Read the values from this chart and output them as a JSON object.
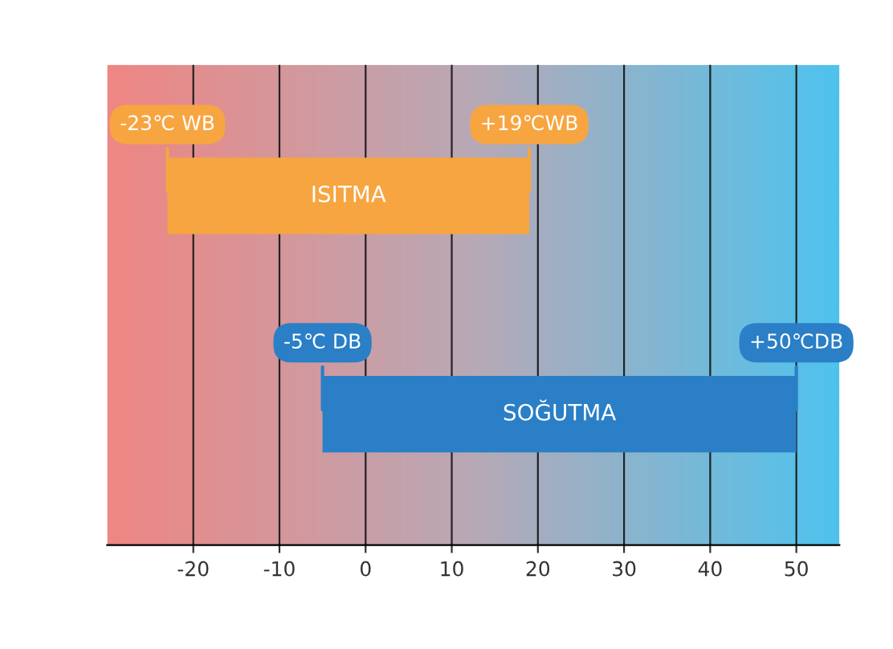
{
  "chart_data": {
    "type": "bar",
    "orientation": "horizontal",
    "categories": [
      "ISITMA",
      "SOĞUTMA"
    ],
    "base": [
      -23,
      -5
    ],
    "values": [
      42,
      55
    ],
    "colors": [
      "#f7a541",
      "#2a7fc6"
    ],
    "xlim": [
      -30,
      55
    ],
    "xticks": [
      -20,
      -10,
      0,
      10,
      20,
      30,
      40,
      50
    ],
    "grid": "x",
    "tick_labels": "x",
    "annotations": [
      {
        "text": "-23℃ WB",
        "x": -23,
        "y": "ISITMA"
      },
      {
        "text": "+19℃WB",
        "x": 19,
        "y": "ISITMA"
      },
      {
        "text": "-5℃ DB",
        "x": -5,
        "y": "SOĞUTMA"
      },
      {
        "text": "+50℃DB",
        "x": 50,
        "y": "SOĞUTMA"
      }
    ]
  }
}
